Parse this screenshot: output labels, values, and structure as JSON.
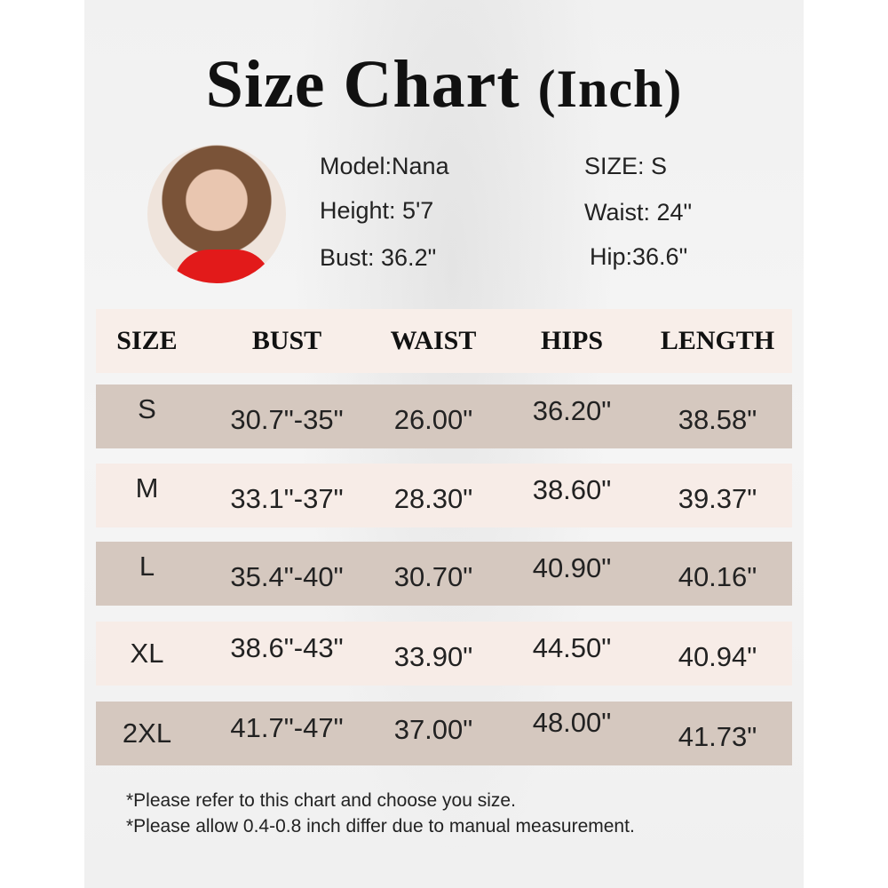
{
  "title": {
    "main": "Size Chart",
    "unit": "(Inch)"
  },
  "model": {
    "left": [
      "Model:Nana",
      "Height: 5'7",
      "Bust: 36.2\""
    ],
    "right": [
      "SIZE: S",
      "Waist: 24\"",
      "Hip:36.6\""
    ]
  },
  "table": {
    "headers": [
      "SIZE",
      "BUST",
      "WAIST",
      "HIPS",
      "LENGTH"
    ],
    "rows": [
      [
        "S",
        "30.7\"-35\"",
        "26.00\"",
        "36.20\"",
        "38.58\""
      ],
      [
        "M",
        "33.1\"-37\"",
        "28.30\"",
        "38.60\"",
        "39.37\""
      ],
      [
        "L",
        "35.4\"-40\"",
        "30.70\"",
        "40.90\"",
        "40.16\""
      ],
      [
        "XL",
        "38.6\"-43\"",
        "33.90\"",
        "44.50\"",
        "40.94\""
      ],
      [
        "2XL",
        "41.7\"-47\"",
        "37.00\"",
        "48.00\"",
        "41.73\""
      ]
    ]
  },
  "notes": [
    "*Please refer to this chart and choose you size.",
    "*Please allow 0.4-0.8 inch differ due to manual measurement."
  ],
  "colors": {
    "header_row": "#f8eee9",
    "dark_row": "#d5c8bf",
    "light_row": "#f7ece7"
  }
}
